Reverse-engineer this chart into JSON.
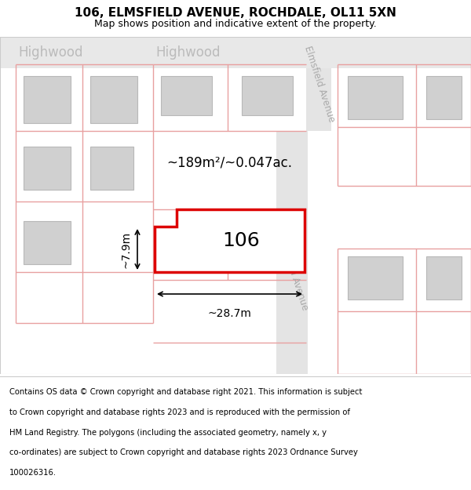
{
  "title": "106, ELMSFIELD AVENUE, ROCHDALE, OL11 5XN",
  "subtitle": "Map shows position and indicative extent of the property.",
  "footer_lines": [
    "Contains OS data © Crown copyright and database right 2021. This information is subject",
    "to Crown copyright and database rights 2023 and is reproduced with the permission of",
    "HM Land Registry. The polygons (including the associated geometry, namely x, y",
    "co-ordinates) are subject to Crown copyright and database rights 2023 Ordnance Survey",
    "100026316."
  ],
  "map_bg": "#eeeeee",
  "road_fill": "#e8e8e8",
  "plot_line_color": "#e8a0a0",
  "building_fill": "#d0d0d0",
  "building_edge": "#b8b8b8",
  "highlight_edge": "#dd0000",
  "highlight_fill": "#ffffff",
  "street_label_color": "#aaaaaa",
  "highwood_color": "#bbbbbb",
  "area_label": "~189m²/~0.047ac.",
  "width_label": "~28.7m",
  "height_label": "~7.9m",
  "number_label": "106",
  "street_label": "Elmsfield Avenue",
  "highwood_label": "Highwood",
  "title_fontsize": 11,
  "subtitle_fontsize": 9,
  "footer_fontsize": 7.2
}
